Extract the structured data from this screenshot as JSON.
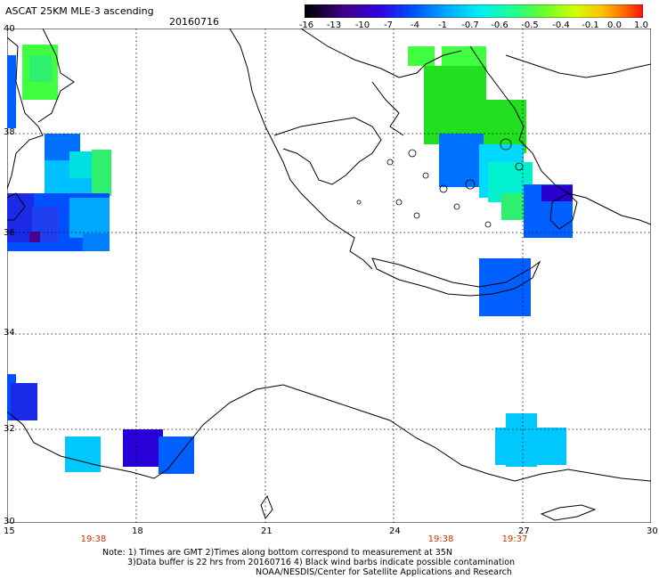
{
  "header": {
    "title": "ASCAT 25KM MLE-3 ascending",
    "date": "20160716"
  },
  "colorbar": {
    "labels": [
      "-16",
      "-13",
      "-10",
      "-7",
      "-4",
      "-1",
      "-0.7",
      "-0.6",
      "-0.5",
      "-0.4",
      "-0.1",
      "0.0",
      "1.0"
    ],
    "colors": [
      "#000000",
      "#3a0070",
      "#5000c0",
      "#2020e0",
      "#0060ff",
      "#00a0ff",
      "#00e0ff",
      "#30ffb0",
      "#60ff40",
      "#c0ff00",
      "#ffe000",
      "#ff8000",
      "#ff2000"
    ]
  },
  "axes": {
    "lat_labels": [
      "40",
      "38",
      "36",
      "34",
      "32",
      "30"
    ],
    "lon_labels": [
      "15",
      "18",
      "21",
      "24",
      "27",
      "30"
    ]
  },
  "times": [
    "19:38",
    "19:38",
    "19:37"
  ],
  "note": {
    "line1": "Note: 1) Times are GMT 2)Times along bottom correspond to measurement at 35N",
    "line2": "3)Data buffer is 22 hrs from 20160716 4) Black wind barbs indicate possible contamination",
    "line3": "NOAA/NESDIS/Center for Satellite Applications and Research"
  },
  "colors": {
    "blue": "#0050ff",
    "dark_blue": "#1a1ae6",
    "indigo": "#2800d8",
    "cyan": "#00c8ff",
    "light_cyan": "#00f0e0",
    "green": "#40ff40",
    "bright_green": "#20e020",
    "coast": "#000000"
  }
}
